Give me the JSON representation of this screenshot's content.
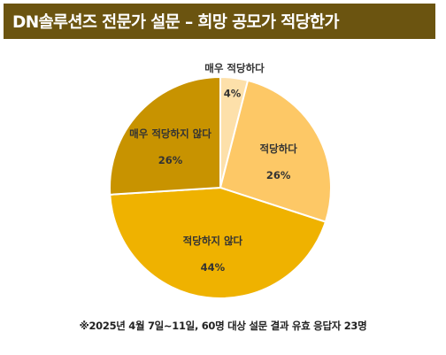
{
  "title": "DN솔루션즈 전문가 설문 – 희망 공모가 적당한가",
  "footnote": "※2025년 4월 7일~11일, 60명 대상 설문 결과 유효 응답자 23명",
  "colors": {
    "title_bg": "#6b5410",
    "very_appropriate": "#fde0aa",
    "appropriate": "#fdc866",
    "not_appropriate": "#efb200",
    "very_not_appropriate": "#c89300",
    "slice_border": "#ffffff"
  },
  "chart_data": {
    "type": "pie",
    "title": "",
    "start": "top, clockwise",
    "slices": [
      {
        "label": "매우 적당하다",
        "value": 4,
        "value_label": "4%",
        "color": "#fde0aa"
      },
      {
        "label": "적당하다",
        "value": 26,
        "value_label": "26%",
        "color": "#fdc866"
      },
      {
        "label": "적당하지 않다",
        "value": 44,
        "value_label": "44%",
        "color": "#efb200"
      },
      {
        "label": "매우 적당하지 않다",
        "value": 26,
        "value_label": "26%",
        "color": "#c89300"
      }
    ]
  }
}
